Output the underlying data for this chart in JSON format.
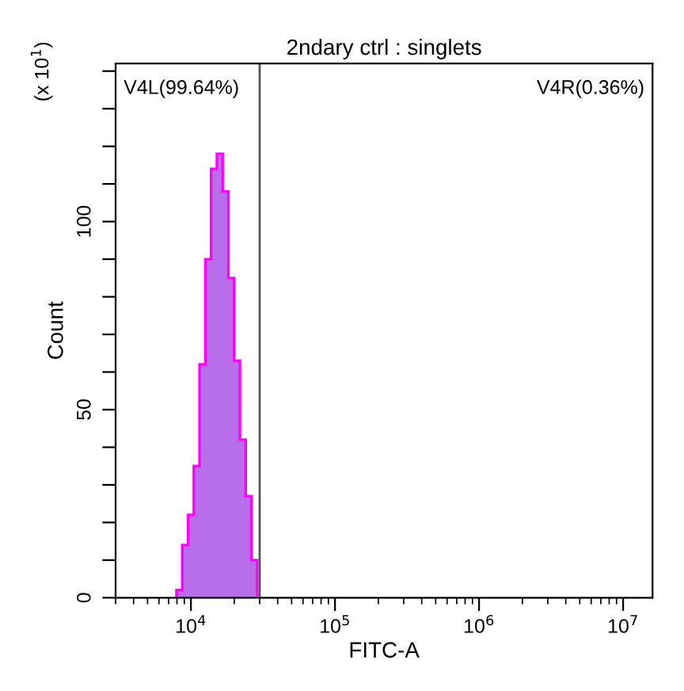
{
  "chart_data": {
    "type": "histogram",
    "title": "2ndary ctrl : singlets",
    "xlabel": "FITC-A",
    "ylabel": "Count",
    "annotations": [
      "(x 10$^{1}$)",
      "V4L(99.64%)",
      "V4R(0.36%)"
    ],
    "bins": [
      7940,
      8710,
      9550,
      10470,
      11480,
      12590,
      13800,
      15140,
      16600,
      18200,
      19950,
      21880,
      23990,
      26300,
      28840
    ],
    "values": [
      2,
      14,
      22,
      35,
      62,
      90,
      114,
      118,
      108,
      85,
      63,
      42,
      27,
      10
    ],
    "color": "#b86ee8",
    "log": "x",
    "xlim": [
      3000,
      16000000
    ],
    "xticks": [
      {
        "value": 10000,
        "label": "10$^{4}$"
      },
      {
        "value": 100000,
        "label": "10$^{5}$"
      },
      {
        "value": 1000000,
        "label": "10$^{6}$"
      },
      {
        "value": 10000000,
        "label": "10$^{7}$"
      }
    ],
    "ylim": [
      0,
      142
    ],
    "yticks": [
      0,
      {
        "value": 10,
        "label": null
      },
      {
        "value": 20,
        "label": null
      },
      {
        "value": 30,
        "label": null
      },
      {
        "value": 40,
        "label": null
      },
      50,
      {
        "value": 60,
        "label": null
      },
      {
        "value": 70,
        "label": null
      },
      {
        "value": 80,
        "label": null
      },
      {
        "value": 90,
        "label": null
      },
      100,
      {
        "value": 110,
        "label": null
      },
      {
        "value": 120,
        "label": null
      },
      {
        "value": 130,
        "label": null
      },
      {
        "value": 140,
        "label": null
      }
    ],
    "ref_lines": [
      {
        "axis": "x",
        "value": 30000,
        "color": "#555555"
      }
    ],
    "grid": false
  }
}
